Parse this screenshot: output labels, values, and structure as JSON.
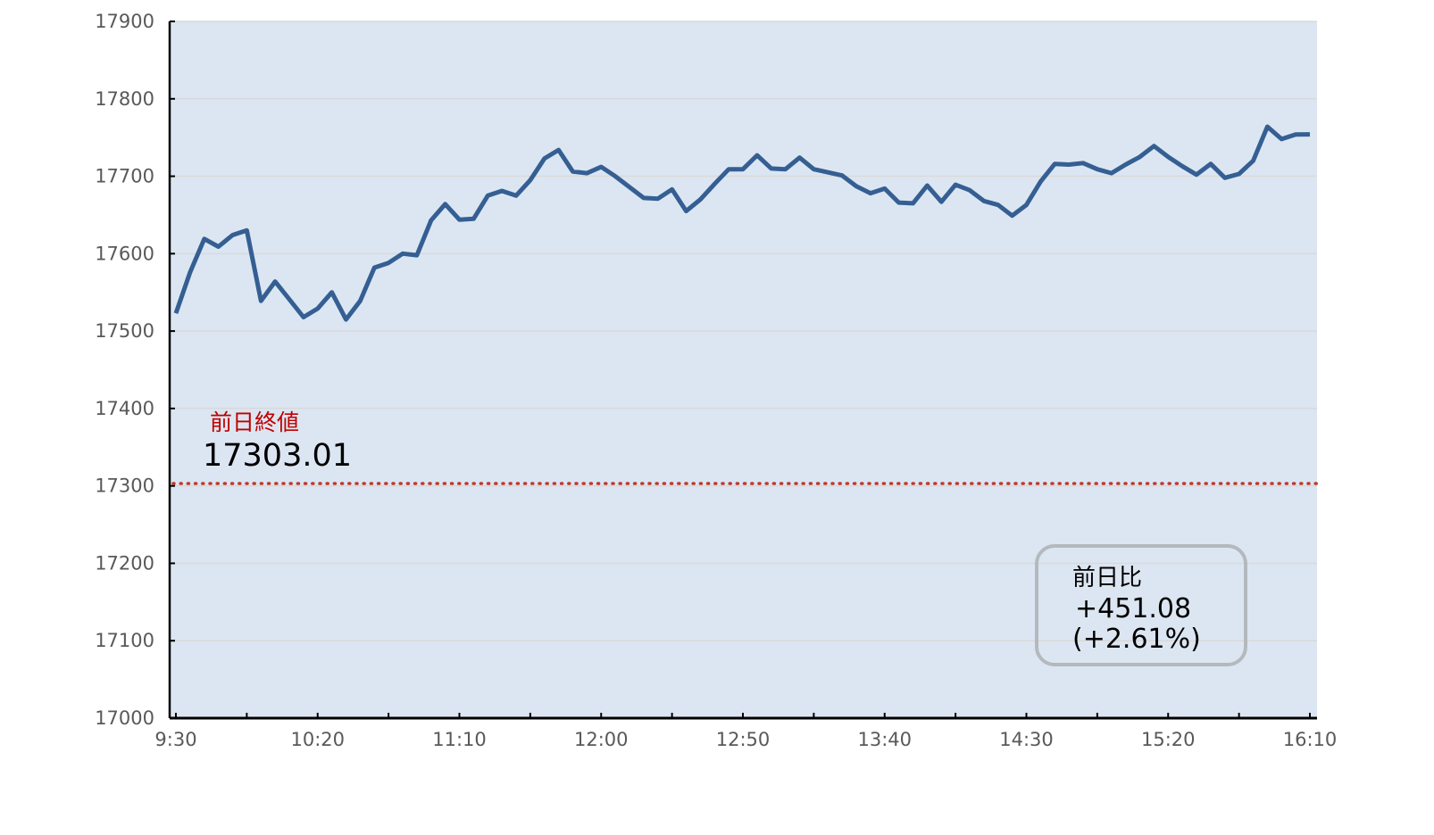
{
  "chart_data": {
    "type": "line",
    "title": "",
    "xlabel": "",
    "ylabel": "",
    "ylim": [
      17000,
      17900
    ],
    "yticks": [
      17000,
      17100,
      17200,
      17300,
      17400,
      17500,
      17600,
      17700,
      17800,
      17900
    ],
    "xtick_labels": [
      "9:30",
      "10:20",
      "11:10",
      "12:00",
      "12:50",
      "13:40",
      "14:30",
      "15:20",
      "16:10"
    ],
    "grid": "horizontal",
    "x_start": "9:30",
    "x_end": "16:10",
    "interval_minutes": 5,
    "values": [
      17523,
      17576,
      17619,
      17609,
      17624,
      17630,
      17539,
      17564,
      17541,
      17518,
      17529,
      17550,
      17515,
      17539,
      17582,
      17588,
      17600,
      17598,
      17643,
      17664,
      17644,
      17645,
      17675,
      17681,
      17675,
      17695,
      17723,
      17734,
      17706,
      17704,
      17712,
      17700,
      17686,
      17672,
      17671,
      17683,
      17655,
      17670,
      17690,
      17709,
      17709,
      17727,
      17710,
      17709,
      17724,
      17709,
      17705,
      17701,
      17687,
      17678,
      17684,
      17666,
      17665,
      17688,
      17667,
      17689,
      17682,
      17668,
      17663,
      17649,
      17663,
      17693,
      17716,
      17715,
      17717,
      17709,
      17704,
      17715,
      17725,
      17739,
      17725,
      17713,
      17702,
      17716,
      17698,
      17703,
      17720,
      17764,
      17748,
      17754,
      17754.09
    ],
    "reference_line": {
      "label": "前日終値",
      "value": 17303.01,
      "value_text": "17303.01"
    },
    "change_box": {
      "label": "前日比",
      "change": "+451.08",
      "percent": "(+2.61%)"
    },
    "colors": {
      "line": "#355f93",
      "plot_bg": "#dce6f2",
      "reference": "#c0392b",
      "reference_label": "#c00000",
      "grid": "#d9d9d9",
      "box_border": "#b4b9be"
    }
  }
}
